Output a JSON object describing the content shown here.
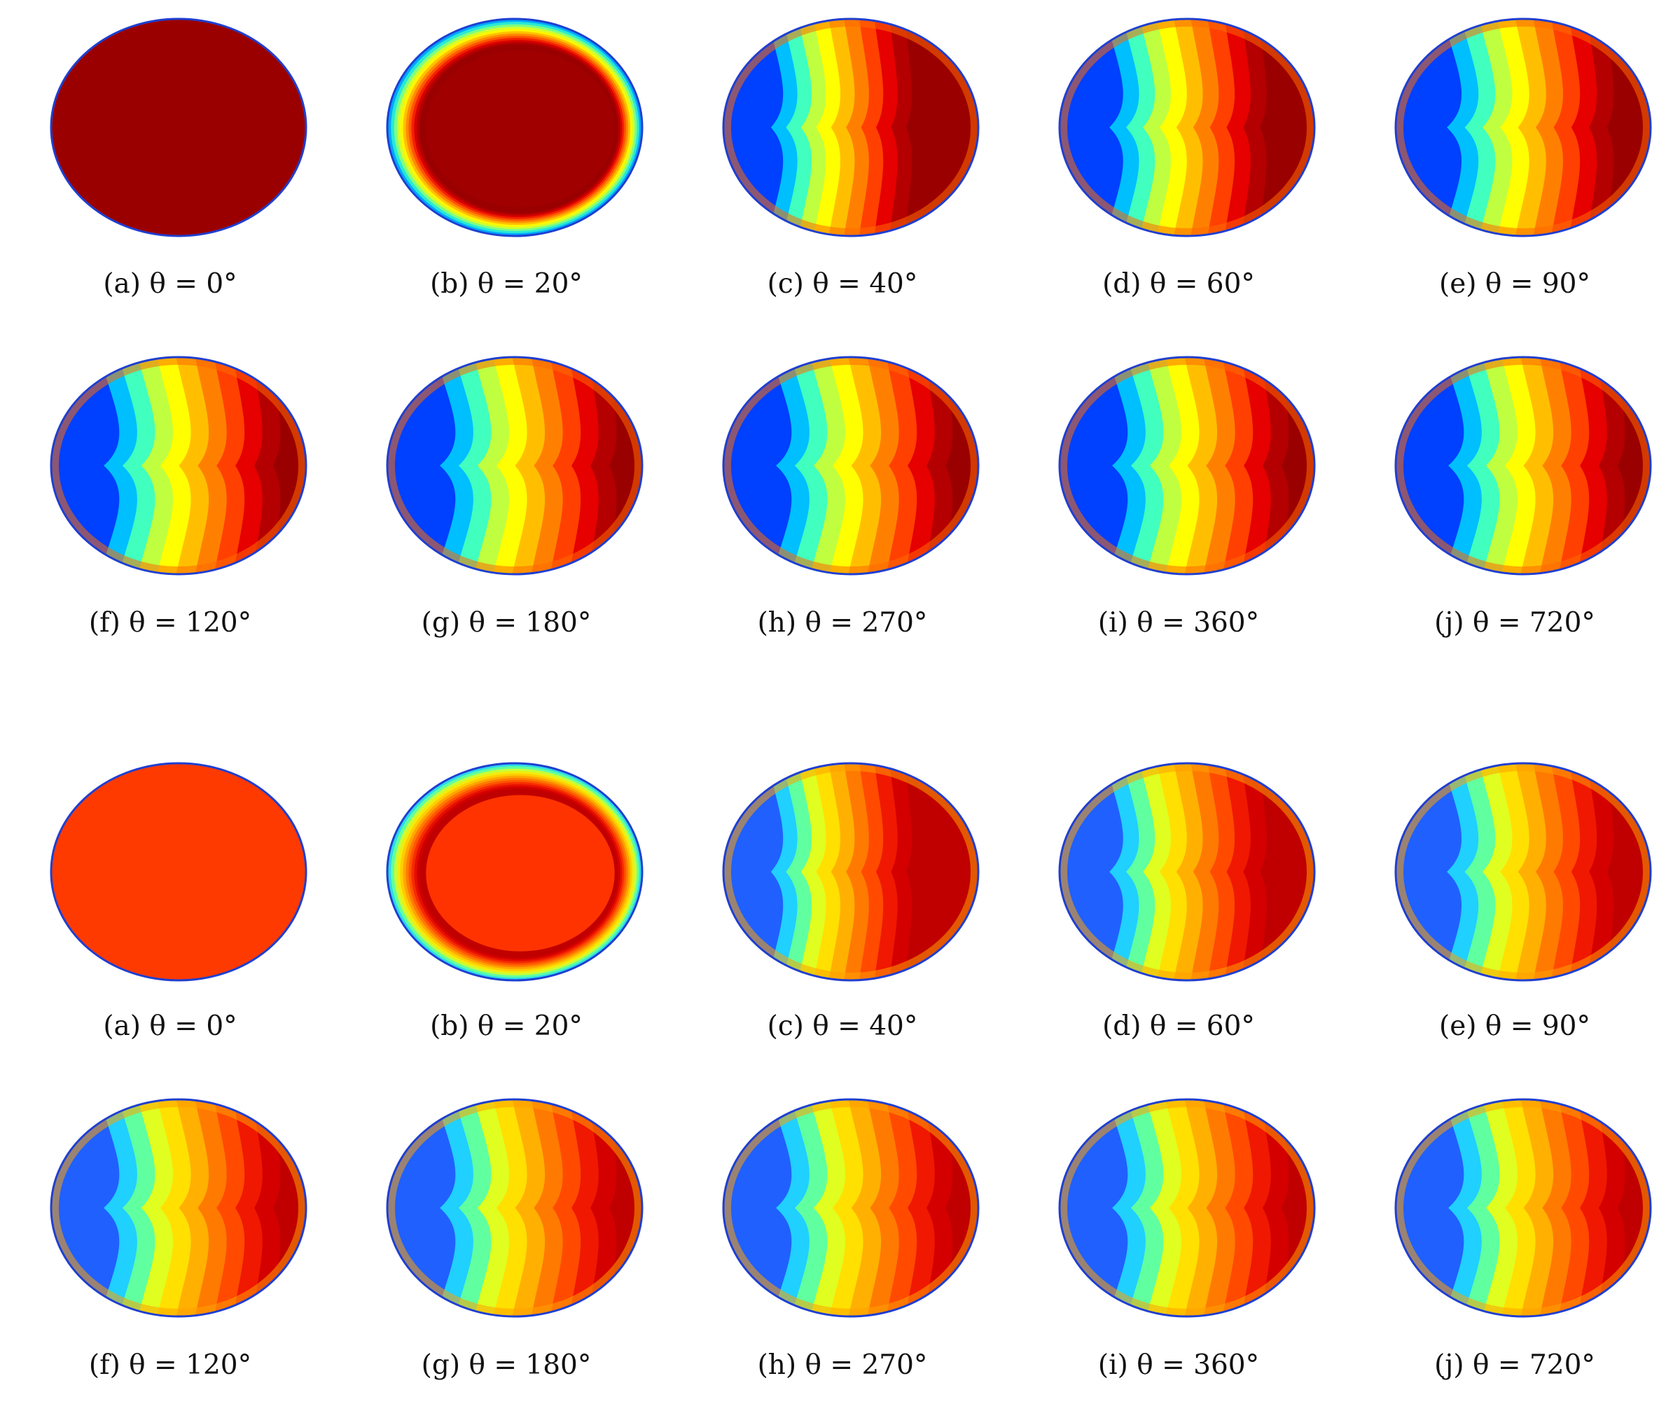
{
  "groups": [
    {
      "initial_colors": [
        "#9b0000",
        "#a00000"
      ],
      "panels": [
        {
          "label": "(a) θ = 0°",
          "stage": 0
        },
        {
          "label": "(b) θ = 20°",
          "stage": 1
        },
        {
          "label": "(c) θ = 40°",
          "stage": 2
        },
        {
          "label": "(d) θ = 60°",
          "stage": 3
        },
        {
          "label": "(e) θ = 90°",
          "stage": 4
        },
        {
          "label": "(f) θ = 120°",
          "stage": 5
        },
        {
          "label": "(g) θ = 180°",
          "stage": 5
        },
        {
          "label": "(h) θ = 270°",
          "stage": 5
        },
        {
          "label": "(i) θ = 360°",
          "stage": 5
        },
        {
          "label": "(j) θ = 720°",
          "stage": 5
        }
      ]
    },
    {
      "initial_colors": [
        "#ff3a00",
        "#ff3300"
      ],
      "panels": [
        {
          "label": "(a) θ = 0°",
          "stage": 0
        },
        {
          "label": "(b) θ = 20°",
          "stage": 1
        },
        {
          "label": "(c) θ = 40°",
          "stage": 2
        },
        {
          "label": "(d) θ = 60°",
          "stage": 3
        },
        {
          "label": "(e) θ = 90°",
          "stage": 4
        },
        {
          "label": "(f) θ = 120°",
          "stage": 5
        },
        {
          "label": "(g) θ = 180°",
          "stage": 5
        },
        {
          "label": "(h) θ = 270°",
          "stage": 5
        },
        {
          "label": "(i) θ = 360°",
          "stage": 5
        },
        {
          "label": "(j) θ = 720°",
          "stage": 5
        }
      ]
    }
  ],
  "colormap": [
    "#00008f",
    "#0040ff",
    "#00bfff",
    "#40ffbf",
    "#bfff40",
    "#ffff00",
    "#ffbf00",
    "#ff8000",
    "#ff4000",
    "#e60000",
    "#b40000",
    "#9b0000"
  ]
}
